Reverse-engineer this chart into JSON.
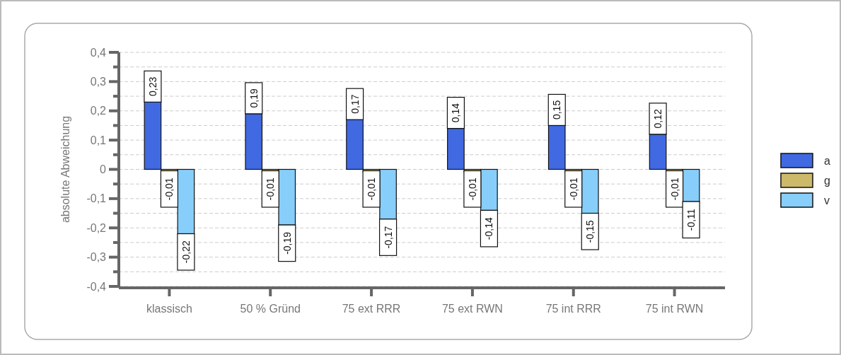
{
  "chart_data": {
    "type": "bar",
    "ylabel": "absolute Abweichung",
    "categories": [
      "klassisch",
      "50 % Gründ",
      "75 ext RRR",
      "75 ext RWN",
      "75 int RRR",
      "75 int RWN"
    ],
    "series": [
      {
        "name": "a",
        "color": "#4169e1",
        "values": [
          0.23,
          0.19,
          0.17,
          0.14,
          0.15,
          0.12
        ],
        "value_labels": [
          "0,23",
          "0,19",
          "0,17",
          "0,14",
          "0,15",
          "0,12"
        ]
      },
      {
        "name": "g",
        "color": "#cdb96a",
        "values": [
          -0.01,
          -0.01,
          -0.01,
          -0.01,
          -0.01,
          -0.01
        ],
        "value_labels": [
          "-0,01",
          "-0,01",
          "-0,01",
          "-0,01",
          "-0,01",
          "-0,01"
        ]
      },
      {
        "name": "v",
        "color": "#87cefa",
        "values": [
          -0.22,
          -0.19,
          -0.17,
          -0.14,
          -0.15,
          -0.11
        ],
        "value_labels": [
          "-0,22",
          "-0,19",
          "-0,17",
          "-0,14",
          "-0,15",
          "-0,11"
        ]
      }
    ],
    "ylim": [
      -0.4,
      0.4
    ],
    "yticks": [
      {
        "value": -0.4,
        "label": "-0,4"
      },
      {
        "value": -0.35,
        "label": null
      },
      {
        "value": -0.3,
        "label": "-0,3"
      },
      {
        "value": -0.25,
        "label": null
      },
      {
        "value": -0.2,
        "label": "-0,2"
      },
      {
        "value": -0.15,
        "label": null
      },
      {
        "value": -0.1,
        "label": "-0,1"
      },
      {
        "value": -0.05,
        "label": null
      },
      0,
      {
        "value": 0.05,
        "label": null
      },
      {
        "value": 0.1,
        "label": "0,1"
      },
      {
        "value": 0.15,
        "label": null
      },
      {
        "value": 0.2,
        "label": "0,2"
      },
      {
        "value": 0.25,
        "label": null
      },
      {
        "value": 0.3,
        "label": "0,3"
      },
      {
        "value": 0.35,
        "label": null
      },
      {
        "value": 0.4,
        "label": "0,4"
      }
    ],
    "grid": "y",
    "legend": "right"
  }
}
